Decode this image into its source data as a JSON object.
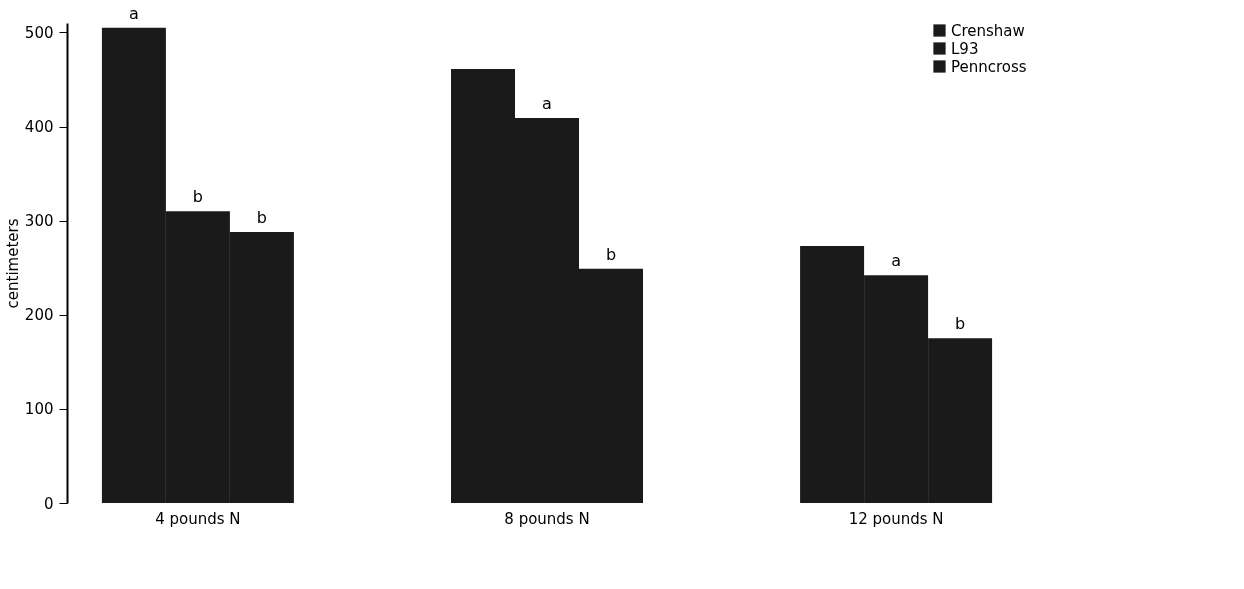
{
  "chart_data": {
    "type": "bar",
    "ylabel": "centimeters",
    "categories": [
      "4 pounds N",
      "8 pounds N",
      "12 pounds N"
    ],
    "series": [
      {
        "name": "Crenshaw",
        "color": "#1a1a1a",
        "values": [
          505,
          461,
          273
        ],
        "value_labels": [
          "a",
          null,
          null
        ]
      },
      {
        "name": "L93",
        "color": "#1a1a1a",
        "values": [
          310,
          409,
          242
        ],
        "value_labels": [
          "b",
          "a",
          "a"
        ]
      },
      {
        "name": "Penncross",
        "color": "#1a1a1a",
        "values": [
          288,
          249,
          175
        ],
        "value_labels": [
          "b",
          "b",
          "b"
        ]
      }
    ],
    "ylim": [
      0,
      510
    ],
    "yticks": [
      0,
      100,
      200,
      300,
      400,
      500
    ],
    "grid": false,
    "legend": "top right"
  }
}
